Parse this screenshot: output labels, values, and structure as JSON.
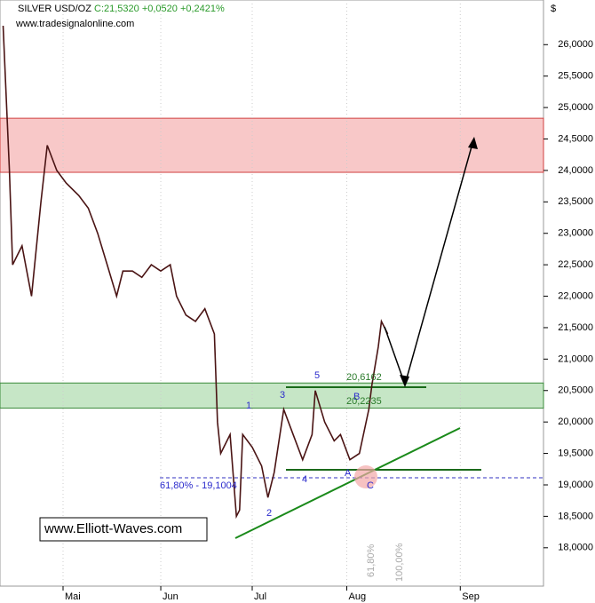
{
  "chart_data": {
    "type": "line",
    "title": "SILVER USD/OZ",
    "subtitle": "C:21,5320 +0,0520 +0,2421%",
    "source": "www.tradesignalonline.com",
    "y_axis_label": "$",
    "xlim": [
      0,
      172.4
    ],
    "xticks": [
      {
        "value": 20,
        "label": "Mai"
      },
      {
        "value": 51,
        "label": "Jun"
      },
      {
        "value": 80,
        "label": "Jul"
      },
      {
        "value": 110,
        "label": "Aug"
      },
      {
        "value": 146,
        "label": "Sep"
      }
    ],
    "ylim": [
      17.39,
      26.71
    ],
    "yticks": [
      {
        "value": 18,
        "label": "18,0000"
      },
      {
        "value": 18.5,
        "label": "18,5000"
      },
      {
        "value": 19,
        "label": "19,0000"
      },
      {
        "value": 19.5,
        "label": "19,5000"
      },
      {
        "value": 20,
        "label": "20,0000"
      },
      {
        "value": 20.5,
        "label": "20,5000"
      },
      {
        "value": 21,
        "label": "21,0000"
      },
      {
        "value": 21.5,
        "label": "21,5000"
      },
      {
        "value": 22,
        "label": "22,0000"
      },
      {
        "value": 22.5,
        "label": "22,5000"
      },
      {
        "value": 23,
        "label": "23,0000"
      },
      {
        "value": 23.5,
        "label": "23,5000"
      },
      {
        "value": 24,
        "label": "24,0000"
      },
      {
        "value": 24.5,
        "label": "24,5000"
      },
      {
        "value": 25,
        "label": "25,0000"
      },
      {
        "value": 25.5,
        "label": "25,5000"
      },
      {
        "value": 26,
        "label": "26,0000"
      }
    ],
    "grid": true,
    "series": [
      {
        "color": "#4a1414",
        "x": [
          1,
          3,
          4,
          7,
          10,
          13,
          15,
          18,
          21,
          25,
          28,
          31,
          34,
          37,
          39,
          42,
          45,
          48,
          51,
          54,
          56,
          59,
          62,
          65,
          68,
          69,
          70,
          73,
          75,
          76,
          77,
          80,
          83,
          85,
          87,
          90,
          93,
          96,
          99,
          100,
          103,
          106,
          108,
          111,
          114,
          117,
          118,
          120,
          121,
          123
        ],
        "values": [
          26.3,
          24.0,
          22.5,
          22.8,
          22.0,
          23.5,
          24.4,
          24.0,
          23.8,
          23.6,
          23.4,
          23.0,
          22.5,
          22.0,
          22.4,
          22.4,
          22.3,
          22.5,
          22.4,
          22.5,
          22.0,
          21.7,
          21.6,
          21.8,
          21.4,
          20.0,
          19.5,
          19.8,
          18.5,
          18.6,
          19.8,
          19.6,
          19.3,
          18.8,
          19.2,
          20.2,
          19.8,
          19.4,
          19.8,
          20.5,
          20.0,
          19.7,
          19.8,
          19.4,
          19.5,
          20.2,
          20.6,
          21.2,
          21.6,
          21.4
        ]
      }
    ],
    "zones": [
      {
        "from": 23.97,
        "to": 24.83,
        "color": "#f8c8c8"
      },
      {
        "from": 20.22,
        "to": 20.62,
        "color": "#c6e6c6"
      }
    ],
    "annotations": [
      "1",
      "2",
      "3",
      "4",
      "5",
      "A",
      "B",
      "C",
      "20,6162",
      "20,2235",
      "61,80% - 19,1004",
      "61,80%",
      "100,00%",
      "www.Elliott-Waves.com"
    ]
  }
}
